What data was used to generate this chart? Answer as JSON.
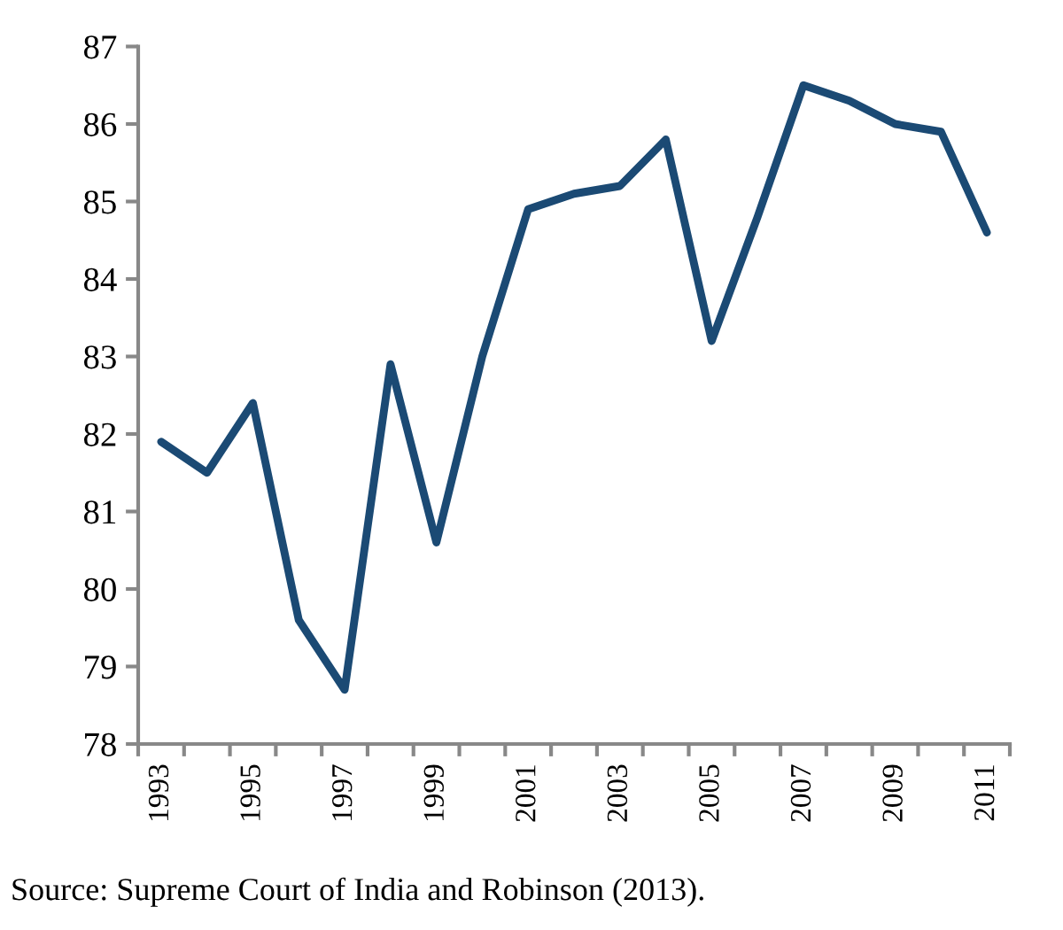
{
  "chart_data": {
    "type": "line",
    "categories": [
      "1993",
      null,
      "1995",
      null,
      "1997",
      null,
      "1999",
      null,
      "2001",
      null,
      "2003",
      null,
      "2005",
      null,
      "2007",
      null,
      "2009",
      null,
      "2011"
    ],
    "series": [
      {
        "color": "#1b4a74",
        "values": [
          81.9,
          81.5,
          82.4,
          79.6,
          78.7,
          82.9,
          80.6,
          83.0,
          84.9,
          85.1,
          85.2,
          85.8,
          83.2,
          84.8,
          86.5,
          86.3,
          86.0,
          85.9,
          84.6
        ]
      }
    ],
    "ylim": [
      78,
      87
    ],
    "yticks": [
      78,
      79,
      80,
      81,
      82,
      83,
      84,
      85,
      86,
      87
    ],
    "grid": false,
    "legend": false,
    "marker": "none",
    "line_style": "solid",
    "annotations": [
      "Source: Supreme Court of India and Robinson (2013)."
    ]
  }
}
